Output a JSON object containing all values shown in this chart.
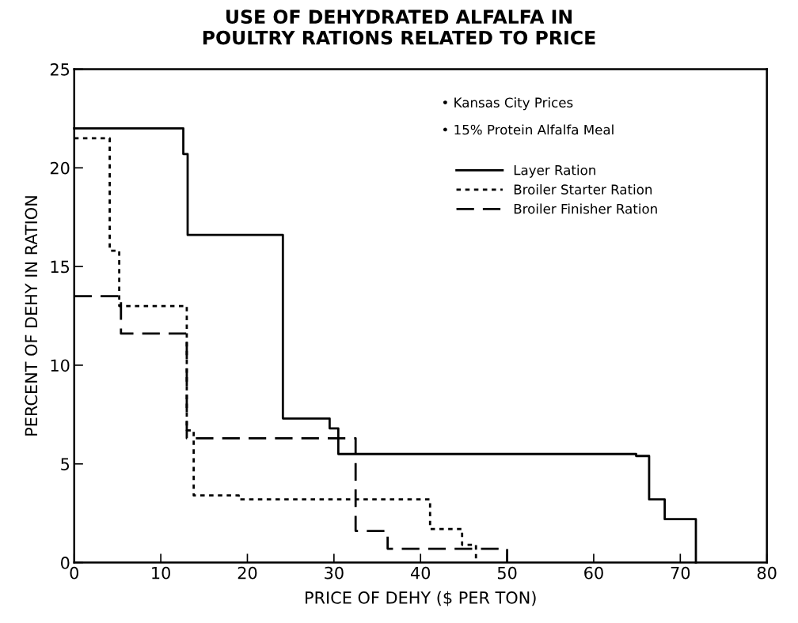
{
  "chart_data": {
    "type": "step",
    "title": "USE OF DEHYDRATED ALFALFA IN\nPOULTRY RATIONS RELATED TO PRICE",
    "xlabel": "PRICE OF DEHY ($ PER TON)",
    "ylabel": "PERCENT OF DEHY IN RATION",
    "annotations": [
      "• Kansas City Prices",
      "• 15% Protein Alfalfa Meal"
    ],
    "series": [
      {
        "name": "Layer Ration",
        "color": "#000000",
        "line_style": "solid",
        "x": [
          0,
          12.6,
          13.1,
          24.1,
          29.5,
          30.5,
          64.9,
          66.4,
          68.2,
          71.8
        ],
        "values": [
          22,
          20.7,
          16.6,
          7.3,
          6.8,
          5.5,
          5.4,
          3.2,
          2.2,
          0
        ]
      },
      {
        "name": "Broiler Starter Ration",
        "color": "#000000",
        "line_style": "dotted",
        "x": [
          0,
          4.1,
          5.2,
          13.0,
          13.8,
          19.0,
          41.1,
          44.8,
          46.4
        ],
        "values": [
          21.5,
          15.8,
          13.0,
          6.7,
          3.4,
          3.2,
          1.7,
          0.9,
          0
        ]
      },
      {
        "name": "Broiler Finisher Ration",
        "color": "#000000",
        "line_style": "dashed",
        "x": [
          0,
          5.4,
          13.0,
          32.5,
          36.2,
          50.0
        ],
        "values": [
          13.5,
          11.6,
          6.3,
          1.6,
          0.7,
          0
        ]
      }
    ],
    "xlim": [
      0,
      80
    ],
    "xticks": [
      0,
      10,
      20,
      30,
      40,
      50,
      60,
      70,
      80
    ],
    "ylim": [
      0,
      25
    ],
    "yticks": [
      0,
      5,
      10,
      15,
      20,
      25
    ],
    "grid": false,
    "legend": "top right",
    "marker": "none"
  }
}
